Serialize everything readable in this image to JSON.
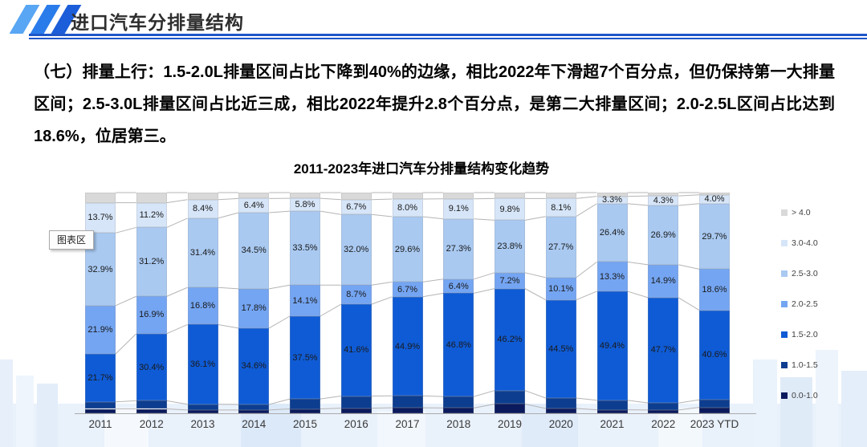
{
  "header": {
    "title": "进口汽车分排量结构"
  },
  "brand": {
    "stripe_colors": [
      "#58a6f4",
      "#2b7ceb",
      "#1c5ed9"
    ],
    "underline_color": "#1e56c9"
  },
  "body_text": "（七）排量上行：1.5-2.0L排量区间占比下降到40%的边缘，相比2022年下滑超7个百分点，但仍保持第一大排量区间；2.5-3.0L排量区间占比近三成，相比2022年提升2.8个百分点，是第二大排量区间；2.0-2.5L区间占比达到18.6%，位居第三。",
  "tooltip_text": "图表区",
  "chart_data": {
    "type": "bar",
    "stacked": true,
    "title": "2011-2023年进口汽车分排量结构变化趋势",
    "xlabel": "",
    "ylabel": "",
    "ylim": [
      0,
      100
    ],
    "unit": "%",
    "grid": false,
    "legend_position": "right",
    "legend_items_top_to_bottom": [
      "> 4.0",
      "3.0-4.0",
      "2.5-3.0",
      "2.0-2.5",
      "1.5-2.0",
      "1.0-1.5",
      "0.0-1.0"
    ],
    "categories": [
      "2011",
      "2012",
      "2013",
      "2014",
      "2015",
      "2016",
      "2017",
      "2018",
      "2019",
      "2020",
      "2021",
      "2022",
      "2023 YTD"
    ],
    "series": [
      {
        "name": "0.0-1.0",
        "color": "#0a1a5c",
        "labels_shown": false,
        "estimated": true,
        "values": [
          2.0,
          2.0,
          1.5,
          1.5,
          2.0,
          2.3,
          2.5,
          2.4,
          4.2,
          2.2,
          1.6,
          1.5,
          2.7
        ]
      },
      {
        "name": "1.0-1.5",
        "color": "#0d3d8f",
        "labels_shown": false,
        "estimated": true,
        "values": [
          3.2,
          3.7,
          2.6,
          2.5,
          4.5,
          5.5,
          5.4,
          5.2,
          6.1,
          4.7,
          4.3,
          3.2,
          3.4
        ]
      },
      {
        "name": "1.5-2.0",
        "color": "#0f5bd5",
        "labels_shown": true,
        "estimated": false,
        "values": [
          21.7,
          30.4,
          36.1,
          34.6,
          37.5,
          41.6,
          44.9,
          46.8,
          46.2,
          44.5,
          49.4,
          47.7,
          40.6
        ]
      },
      {
        "name": "2.0-2.5",
        "color": "#74a5f2",
        "labels_shown": true,
        "estimated": false,
        "values": [
          21.9,
          16.9,
          16.8,
          17.8,
          14.1,
          8.7,
          6.7,
          6.4,
          7.2,
          10.1,
          13.3,
          14.9,
          18.6
        ]
      },
      {
        "name": "2.5-3.0",
        "color": "#a9c9f1",
        "labels_shown": true,
        "estimated": false,
        "values": [
          32.9,
          31.2,
          31.4,
          34.5,
          33.5,
          32.0,
          29.6,
          27.3,
          23.8,
          27.7,
          26.4,
          26.9,
          29.7
        ]
      },
      {
        "name": "3.0-4.0",
        "color": "#d6e5f8",
        "labels_shown": true,
        "estimated": false,
        "values": [
          13.7,
          11.2,
          8.4,
          6.4,
          5.8,
          6.7,
          8.0,
          9.1,
          9.8,
          8.1,
          3.3,
          4.3,
          4.0
        ]
      },
      {
        "name": "> 4.0",
        "color": "#d9d9d9",
        "labels_shown": false,
        "estimated": true,
        "values": [
          4.6,
          4.6,
          3.2,
          2.7,
          2.6,
          3.2,
          2.9,
          2.8,
          2.7,
          2.7,
          1.7,
          1.5,
          1.0
        ]
      }
    ]
  }
}
